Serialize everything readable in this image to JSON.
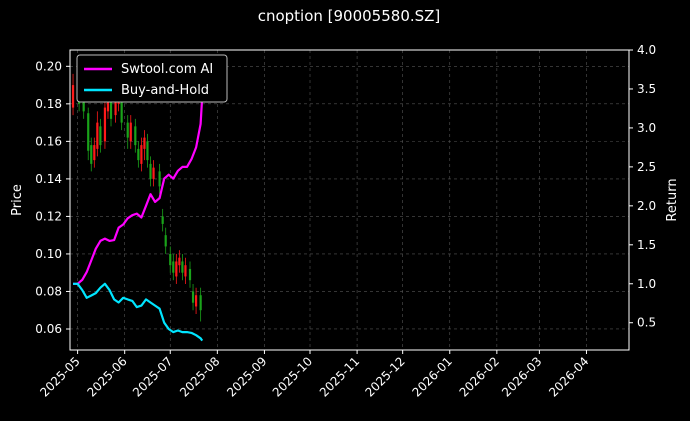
{
  "chart_data": {
    "type": "line",
    "title": "cnoption [90005580.SZ]",
    "ylabel_left": "Price",
    "ylabel_right": "Return",
    "x_range": [
      "2025-04-26",
      "2026-04-29"
    ],
    "y_left_range": [
      0.0488,
      0.2087
    ],
    "y_right_range": [
      0.15,
      4.0
    ],
    "x_ticks": [
      "2025-05",
      "2025-06",
      "2025-07",
      "2025-08",
      "2025-09",
      "2025-10",
      "2025-11",
      "2025-12",
      "2026-01",
      "2026-02",
      "2026-03",
      "2026-04"
    ],
    "y_left_ticks": [
      "0.06",
      "0.08",
      "0.10",
      "0.12",
      "0.14",
      "0.16",
      "0.18",
      "0.20"
    ],
    "y_right_ticks": [
      "0.5",
      "1.0",
      "1.5",
      "2.0",
      "2.5",
      "3.0",
      "3.5",
      "4.0"
    ],
    "grid": true,
    "legend_position": "top-left",
    "colors": {
      "strategy": "#ff00ff",
      "benchmark": "#00e5ff",
      "candle_up": "#ff1a1a",
      "candle_down": "#1aa31a",
      "grid": "#555555",
      "background": "#000000"
    },
    "series": [
      {
        "name": "Swtool.com AI",
        "axis": "right",
        "x": [
          "2025-04-28",
          "2025-05-01",
          "2025-05-04",
          "2025-05-07",
          "2025-05-10",
          "2025-05-13",
          "2025-05-16",
          "2025-05-19",
          "2025-05-22",
          "2025-05-25",
          "2025-05-28",
          "2025-05-31",
          "2025-06-03",
          "2025-06-06",
          "2025-06-09",
          "2025-06-12",
          "2025-06-15",
          "2025-06-18",
          "2025-06-21",
          "2025-06-24",
          "2025-06-27",
          "2025-06-30",
          "2025-07-03",
          "2025-07-06",
          "2025-07-09",
          "2025-07-12",
          "2025-07-15",
          "2025-07-18",
          "2025-07-21",
          "2025-07-22"
        ],
        "values": [
          1.0,
          1.0,
          1.05,
          1.15,
          1.3,
          1.45,
          1.55,
          1.58,
          1.55,
          1.56,
          1.72,
          1.76,
          1.84,
          1.88,
          1.9,
          1.85,
          2.0,
          2.15,
          2.05,
          2.1,
          2.35,
          2.4,
          2.35,
          2.45,
          2.5,
          2.5,
          2.6,
          2.75,
          3.05,
          3.4
        ]
      },
      {
        "name": "Buy-and-Hold",
        "axis": "right",
        "x": [
          "2025-04-28",
          "2025-05-01",
          "2025-05-04",
          "2025-05-07",
          "2025-05-10",
          "2025-05-13",
          "2025-05-16",
          "2025-05-19",
          "2025-05-22",
          "2025-05-25",
          "2025-05-28",
          "2025-05-31",
          "2025-06-03",
          "2025-06-06",
          "2025-06-09",
          "2025-06-12",
          "2025-06-15",
          "2025-06-18",
          "2025-06-21",
          "2025-06-24",
          "2025-06-27",
          "2025-06-30",
          "2025-07-03",
          "2025-07-06",
          "2025-07-09",
          "2025-07-12",
          "2025-07-15",
          "2025-07-18",
          "2025-07-21",
          "2025-07-22"
        ],
        "values": [
          1.0,
          1.0,
          0.92,
          0.82,
          0.85,
          0.88,
          0.95,
          1.0,
          0.92,
          0.8,
          0.76,
          0.82,
          0.8,
          0.78,
          0.7,
          0.72,
          0.8,
          0.76,
          0.72,
          0.68,
          0.5,
          0.42,
          0.38,
          0.4,
          0.38,
          0.38,
          0.37,
          0.34,
          0.3,
          0.27
        ]
      }
    ],
    "candles": [
      {
        "x": "2025-04-28",
        "open": 0.178,
        "close": 0.19,
        "high": 0.196,
        "low": 0.174
      },
      {
        "x": "2025-05-02",
        "open": 0.188,
        "close": 0.18,
        "high": 0.192,
        "low": 0.176
      },
      {
        "x": "2025-05-05",
        "open": 0.182,
        "close": 0.176,
        "high": 0.186,
        "low": 0.172
      },
      {
        "x": "2025-05-08",
        "open": 0.175,
        "close": 0.155,
        "high": 0.178,
        "low": 0.15
      },
      {
        "x": "2025-05-10",
        "open": 0.158,
        "close": 0.148,
        "high": 0.162,
        "low": 0.144
      },
      {
        "x": "2025-05-12",
        "open": 0.15,
        "close": 0.158,
        "high": 0.162,
        "low": 0.146
      },
      {
        "x": "2025-05-14",
        "open": 0.156,
        "close": 0.17,
        "high": 0.176,
        "low": 0.152
      },
      {
        "x": "2025-05-16",
        "open": 0.168,
        "close": 0.158,
        "high": 0.172,
        "low": 0.154
      },
      {
        "x": "2025-05-19",
        "open": 0.16,
        "close": 0.178,
        "high": 0.182,
        "low": 0.156
      },
      {
        "x": "2025-05-21",
        "open": 0.176,
        "close": 0.184,
        "high": 0.19,
        "low": 0.172
      },
      {
        "x": "2025-05-23",
        "open": 0.182,
        "close": 0.172,
        "high": 0.186,
        "low": 0.168
      },
      {
        "x": "2025-05-26",
        "open": 0.174,
        "close": 0.182,
        "high": 0.188,
        "low": 0.17
      },
      {
        "x": "2025-05-28",
        "open": 0.18,
        "close": 0.188,
        "high": 0.19,
        "low": 0.176
      },
      {
        "x": "2025-05-30",
        "open": 0.186,
        "close": 0.17,
        "high": 0.188,
        "low": 0.166
      },
      {
        "x": "2025-06-03",
        "open": 0.17,
        "close": 0.162,
        "high": 0.174,
        "low": 0.156
      },
      {
        "x": "2025-06-05",
        "open": 0.16,
        "close": 0.17,
        "high": 0.174,
        "low": 0.156
      },
      {
        "x": "2025-06-08",
        "open": 0.168,
        "close": 0.158,
        "high": 0.172,
        "low": 0.154
      },
      {
        "x": "2025-06-10",
        "open": 0.156,
        "close": 0.15,
        "high": 0.16,
        "low": 0.146
      },
      {
        "x": "2025-06-12",
        "open": 0.148,
        "close": 0.158,
        "high": 0.162,
        "low": 0.144
      },
      {
        "x": "2025-06-14",
        "open": 0.156,
        "close": 0.162,
        "high": 0.166,
        "low": 0.15
      },
      {
        "x": "2025-06-16",
        "open": 0.16,
        "close": 0.15,
        "high": 0.164,
        "low": 0.146
      },
      {
        "x": "2025-06-18",
        "open": 0.148,
        "close": 0.14,
        "high": 0.152,
        "low": 0.136
      },
      {
        "x": "2025-06-20",
        "open": 0.14,
        "close": 0.146,
        "high": 0.15,
        "low": 0.136
      },
      {
        "x": "2025-06-24",
        "open": 0.144,
        "close": 0.136,
        "high": 0.148,
        "low": 0.132
      },
      {
        "x": "2025-06-26",
        "open": 0.12,
        "close": 0.116,
        "high": 0.124,
        "low": 0.112
      },
      {
        "x": "2025-06-28",
        "open": 0.11,
        "close": 0.104,
        "high": 0.114,
        "low": 0.1
      },
      {
        "x": "2025-07-01",
        "open": 0.1,
        "close": 0.094,
        "high": 0.104,
        "low": 0.09
      },
      {
        "x": "2025-07-03",
        "open": 0.096,
        "close": 0.09,
        "high": 0.1,
        "low": 0.086
      },
      {
        "x": "2025-07-05",
        "open": 0.088,
        "close": 0.096,
        "high": 0.1,
        "low": 0.084
      },
      {
        "x": "2025-07-07",
        "open": 0.094,
        "close": 0.098,
        "high": 0.102,
        "low": 0.09
      },
      {
        "x": "2025-07-09",
        "open": 0.096,
        "close": 0.09,
        "high": 0.1,
        "low": 0.086
      },
      {
        "x": "2025-07-11",
        "open": 0.088,
        "close": 0.094,
        "high": 0.098,
        "low": 0.084
      },
      {
        "x": "2025-07-14",
        "open": 0.092,
        "close": 0.086,
        "high": 0.096,
        "low": 0.082
      },
      {
        "x": "2025-07-16",
        "open": 0.08,
        "close": 0.074,
        "high": 0.084,
        "low": 0.07
      },
      {
        "x": "2025-07-18",
        "open": 0.072,
        "close": 0.078,
        "high": 0.082,
        "low": 0.068
      },
      {
        "x": "2025-07-21",
        "open": 0.078,
        "close": 0.07,
        "high": 0.082,
        "low": 0.064
      }
    ]
  }
}
